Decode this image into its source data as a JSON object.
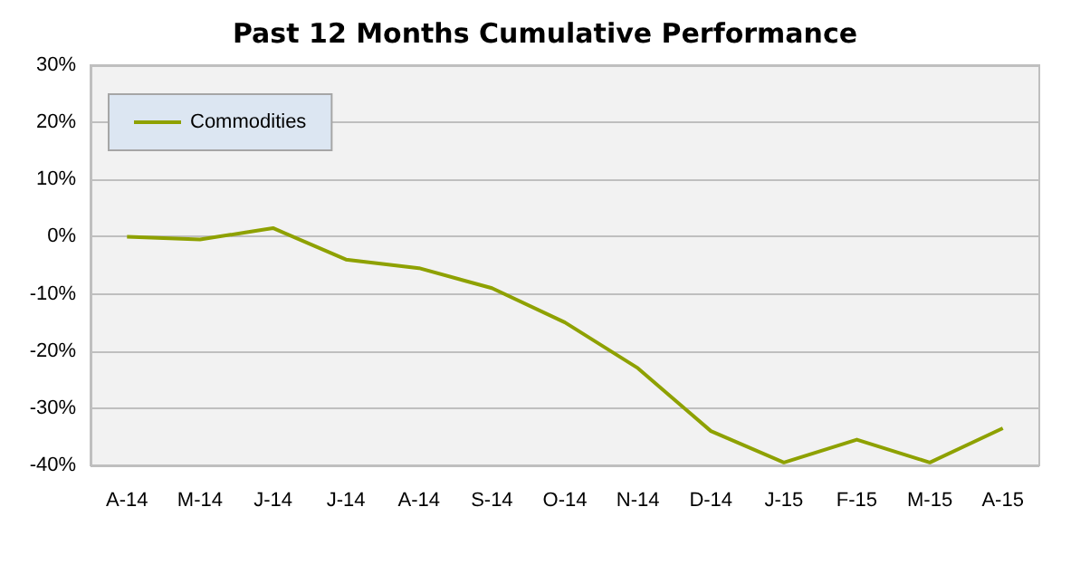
{
  "chart_data": {
    "type": "line",
    "title": "Past 12 Months Cumulative Performance",
    "categories": [
      "A-14",
      "M-14",
      "J-14",
      "J-14",
      "A-14",
      "S-14",
      "O-14",
      "N-14",
      "D-14",
      "J-15",
      "F-15",
      "M-15",
      "A-15"
    ],
    "series": [
      {
        "name": "Commodities",
        "color": "#8ea100",
        "values": [
          0,
          -0.5,
          1.5,
          -4,
          -5.5,
          -9,
          -15,
          -23,
          -34,
          -39.5,
          -35.5,
          -39.5,
          -33.5
        ]
      }
    ],
    "ylim": [
      -40,
      30
    ],
    "yticks": [
      {
        "value": -40,
        "label": "-40%"
      },
      {
        "value": -30,
        "label": "-30%"
      },
      {
        "value": -20,
        "label": "-20%"
      },
      {
        "value": -10,
        "label": "-10%"
      },
      {
        "value": 0,
        "label": "0%"
      },
      {
        "value": 10,
        "label": "10%"
      },
      {
        "value": 20,
        "label": "20%"
      },
      {
        "value": 30,
        "label": "30%"
      }
    ],
    "grid": "y",
    "legend": "top left",
    "marker": "none",
    "line_style": "solid"
  }
}
